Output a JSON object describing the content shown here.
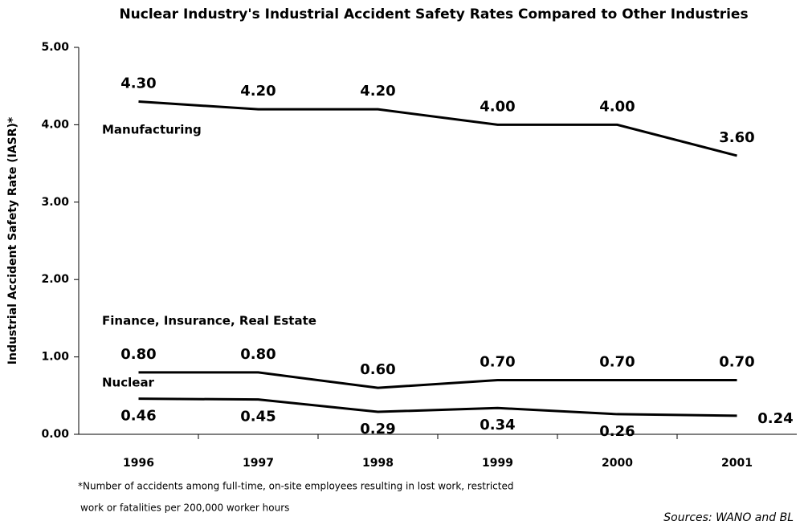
{
  "chart_data": {
    "type": "line",
    "title": "Nuclear Industry's Industrial Accident Safety Rates Compared to Other Industries",
    "y_label": "Industrial Accident Safety Rate (IASR)*",
    "footnote": [
      "*Number of accidents among full-time, on-site employees resulting in lost work, restricted",
      "work or fatalities per 200,000 worker hours"
    ],
    "source": "Sources: WANO and BL",
    "categories": [
      "1996",
      "1997",
      "1998",
      "1999",
      "2000",
      "2001"
    ],
    "series": [
      {
        "name": "Manufacturing",
        "color": "#000000",
        "values": [
          4.3,
          4.2,
          4.2,
          4.0,
          4.0,
          3.6
        ],
        "value_labels": [
          "4.30",
          "4.20",
          "4.20",
          "4.00",
          "4.00",
          "3.60"
        ]
      },
      {
        "name": "Finance, Insurance, Real Estate",
        "color": "#000000",
        "values": [
          0.8,
          0.8,
          0.6,
          0.7,
          0.7,
          0.7
        ],
        "value_labels": [
          "0.80",
          "0.80",
          "0.60",
          "0.70",
          "0.70",
          "0.70"
        ]
      },
      {
        "name": "Nuclear",
        "color": "#000000",
        "values": [
          0.46,
          0.45,
          0.29,
          0.34,
          0.26,
          0.24
        ],
        "value_labels": [
          "0.46",
          "0.45",
          "0.29",
          "0.34",
          "0.26",
          "0.24"
        ]
      }
    ],
    "ylim": [
      0,
      5
    ],
    "yticks": [
      {
        "value": 0,
        "label": "0.00"
      },
      {
        "value": 1,
        "label": "1.00"
      },
      {
        "value": 2,
        "label": "2.00"
      },
      {
        "value": 3,
        "label": "3.00"
      },
      {
        "value": 4,
        "label": "4.00"
      },
      {
        "value": 5,
        "label": "5.00"
      }
    ],
    "grid": false
  }
}
